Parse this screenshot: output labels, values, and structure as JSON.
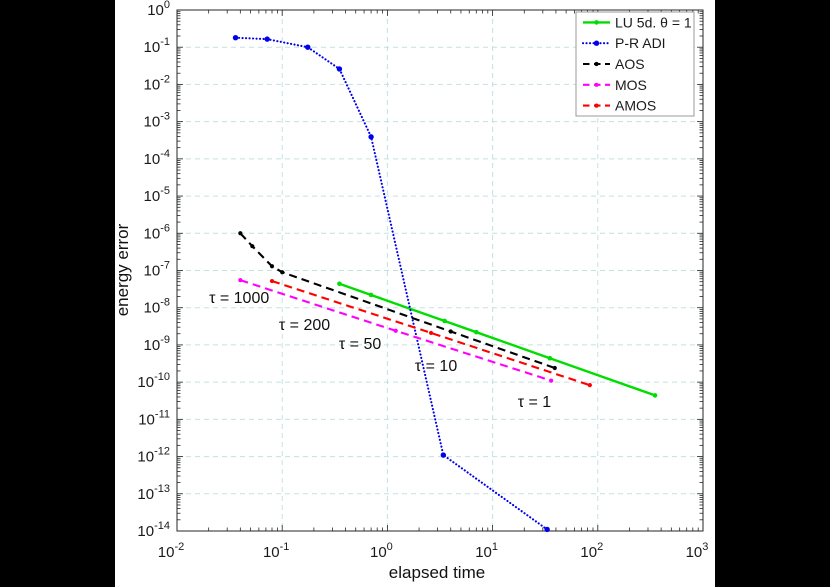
{
  "figure": {
    "background": "#000000",
    "plot_background": "#ffffff",
    "axis_color": "#262626",
    "text_color": "#1a1a1a"
  },
  "chart_data": {
    "type": "line",
    "title": "",
    "xlabel": "elapsed time",
    "ylabel": "energy  error",
    "x_scale": "log",
    "y_scale": "log",
    "xlim": [
      0.01,
      1000
    ],
    "ylim": [
      1e-14,
      1
    ],
    "x_tick_exponents": [
      -2,
      -1,
      0,
      1,
      2,
      3
    ],
    "y_tick_exponents": [
      0,
      -1,
      -2,
      -3,
      -4,
      -5,
      -6,
      -7,
      -8,
      -9,
      -10,
      -11,
      -12,
      -13,
      -14
    ],
    "grid": true,
    "grid_color": "#c5e0e0",
    "legend": {
      "position": "top-right",
      "border_color": "#999999",
      "background": "#ffffff"
    },
    "series": [
      {
        "name": "LU 5d. θ = 1",
        "color": "#00dd00",
        "style": "solid",
        "width": 2.4,
        "marker": true,
        "marker_size": 2.3,
        "points": [
          [
            0.35,
            4.4e-08
          ],
          [
            0.7,
            2.2e-08
          ],
          [
            3.5,
            4.4e-09
          ],
          [
            7,
            2.2e-09
          ],
          [
            35,
            4.4e-10
          ],
          [
            350,
            4.4e-11
          ]
        ]
      },
      {
        "name": "P-R ADI",
        "color": "#0000ee",
        "style": "dotted",
        "width": 2.1,
        "marker": true,
        "marker_size": 2.7,
        "points": [
          [
            0.036,
            0.18
          ],
          [
            0.072,
            0.165
          ],
          [
            0.175,
            0.1
          ],
          [
            0.35,
            0.026
          ],
          [
            0.7,
            0.00039
          ],
          [
            3.4,
            1.1e-12
          ],
          [
            33,
            1.1e-14
          ]
        ]
      },
      {
        "name": "AOS",
        "color": "#000000",
        "style": "dashed",
        "width": 2.1,
        "marker": true,
        "marker_size": 2.1,
        "points": [
          [
            0.04,
            1e-06
          ],
          [
            0.052,
            4.5e-07
          ],
          [
            0.08,
            1.3e-07
          ],
          [
            0.1,
            9e-08
          ],
          [
            4,
            2.3e-09
          ],
          [
            39,
            2.4e-10
          ]
        ]
      },
      {
        "name": "MOS",
        "color": "#ff00ff",
        "style": "dashed",
        "width": 2.1,
        "marker": true,
        "marker_size": 2.1,
        "points": [
          [
            0.04,
            5.5e-08
          ],
          [
            1.2,
            2.4e-09
          ],
          [
            36,
            1.1e-10
          ]
        ]
      },
      {
        "name": "AMOS",
        "color": "#ff0000",
        "style": "dashed",
        "width": 2.1,
        "marker": true,
        "marker_size": 2.1,
        "points": [
          [
            0.08,
            5.2e-08
          ],
          [
            2.6,
            2.1e-09
          ],
          [
            84,
            8.3e-11
          ]
        ]
      }
    ],
    "annotations": [
      {
        "text": "τ = 1000",
        "x": 0.039,
        "y": 1.8e-08
      },
      {
        "text": "τ = 200",
        "x": 0.163,
        "y": 3.4e-09
      },
      {
        "text": "τ = 50",
        "x": 0.55,
        "y": 1.05e-09
      },
      {
        "text": "τ = 10",
        "x": 2.9,
        "y": 2.7e-10
      },
      {
        "text": "τ = 1",
        "x": 25,
        "y": 2.9e-11
      }
    ]
  }
}
